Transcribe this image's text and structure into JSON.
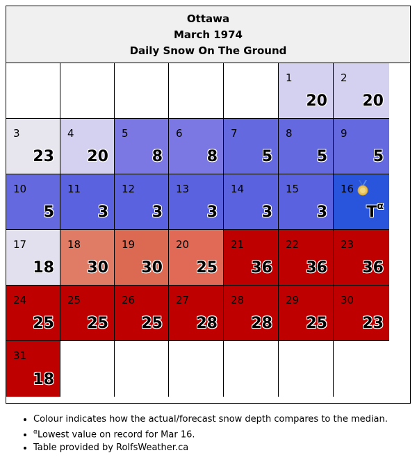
{
  "header": {
    "city": "Ottawa",
    "month": "March 1974",
    "subtitle": "Daily Snow On The Ground"
  },
  "colors": {
    "lavender_light": "#d4d0f0",
    "lavender_pale": "#e7e5ee",
    "blue_medium": "#7b78e4",
    "blue": "#6569e0",
    "blue_strong": "#2955dc",
    "salmon": "#e07b66",
    "salmon_dark": "#dc6a52",
    "red": "#bf0000"
  },
  "leading_blanks": 5,
  "trailing_blanks": 6,
  "days": [
    {
      "day": "1",
      "value": "20",
      "color": "#d4d0f0"
    },
    {
      "day": "2",
      "value": "20",
      "color": "#d4d0f0"
    },
    {
      "day": "3",
      "value": "23",
      "color": "#e7e5ee"
    },
    {
      "day": "4",
      "value": "20",
      "color": "#d4d0f0"
    },
    {
      "day": "5",
      "value": "8",
      "color": "#7b78e4"
    },
    {
      "day": "6",
      "value": "8",
      "color": "#7b78e4"
    },
    {
      "day": "7",
      "value": "5",
      "color": "#6569e0"
    },
    {
      "day": "8",
      "value": "5",
      "color": "#6569e0"
    },
    {
      "day": "9",
      "value": "5",
      "color": "#6569e0"
    },
    {
      "day": "10",
      "value": "5",
      "color": "#6569e0"
    },
    {
      "day": "11",
      "value": "3",
      "color": "#5a62df"
    },
    {
      "day": "12",
      "value": "3",
      "color": "#5a62df"
    },
    {
      "day": "13",
      "value": "3",
      "color": "#5a62df"
    },
    {
      "day": "14",
      "value": "3",
      "color": "#5a62df"
    },
    {
      "day": "15",
      "value": "3",
      "color": "#5a62df"
    },
    {
      "day": "16",
      "value": "T",
      "sup": "α",
      "color": "#2955dc",
      "medal": "medal-icon"
    },
    {
      "day": "17",
      "value": "18",
      "color": "#e2e0ee"
    },
    {
      "day": "18",
      "value": "30",
      "color": "#e07b66"
    },
    {
      "day": "19",
      "value": "30",
      "color": "#dc6a52"
    },
    {
      "day": "20",
      "value": "25",
      "color": "#e06a55"
    },
    {
      "day": "21",
      "value": "36",
      "color": "#bf0000"
    },
    {
      "day": "22",
      "value": "36",
      "color": "#bf0000"
    },
    {
      "day": "23",
      "value": "36",
      "color": "#bf0000"
    },
    {
      "day": "24",
      "value": "25",
      "color": "#bf0000"
    },
    {
      "day": "25",
      "value": "25",
      "color": "#bf0000"
    },
    {
      "day": "26",
      "value": "25",
      "color": "#bf0000"
    },
    {
      "day": "27",
      "value": "28",
      "color": "#bf0000"
    },
    {
      "day": "28",
      "value": "28",
      "color": "#bf0000"
    },
    {
      "day": "29",
      "value": "25",
      "color": "#bf0000"
    },
    {
      "day": "30",
      "value": "23",
      "color": "#bf0000"
    },
    {
      "day": "31",
      "value": "18",
      "color": "#bf0000"
    }
  ],
  "notes": {
    "colour": "Colour indicates how the actual/forecast snow depth compares to the median.",
    "lowest_sup": "α",
    "lowest": "Lowest value on record for Mar 16.",
    "credit": "Table provided by RolfsWeather.ca"
  }
}
